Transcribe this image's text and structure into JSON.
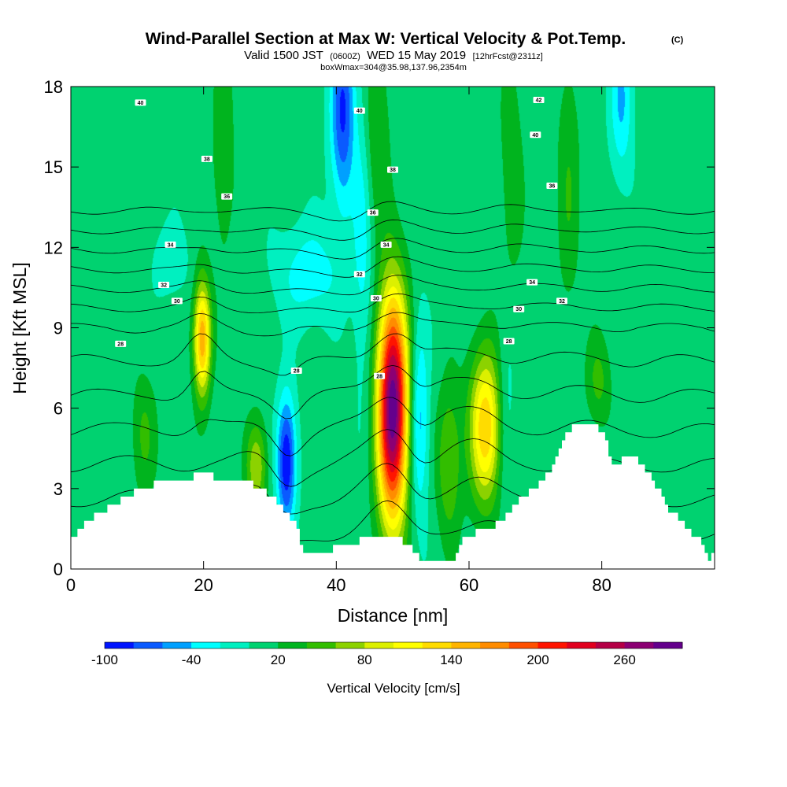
{
  "title": {
    "line1": "Wind-Parallel Section at Max W: Vertical Velocity & Pot.Temp.",
    "copyright": "(C)",
    "line2_a": "Valid 1500 JST",
    "line2_b": "(0600Z)",
    "line2_c": "WED 15 May 2019",
    "line2_d": "[12hrFcst@2311z]",
    "line3": "boxWmax=304@35.98,137.96,2354m"
  },
  "chart_data": {
    "type": "heatmap",
    "xlabel": "Distance [nm]",
    "ylabel": "Height [Kft MSL]",
    "xlim": [
      0,
      97
    ],
    "ylim": [
      0,
      18
    ],
    "x_ticks": [
      0,
      20,
      40,
      60,
      80
    ],
    "y_ticks": [
      0,
      3,
      6,
      9,
      12,
      15,
      18
    ],
    "background_value": 8,
    "updrafts": [
      {
        "x": 48.5,
        "y": 6.0,
        "sx": 1.6,
        "sy": 3.0,
        "w": 290
      },
      {
        "x": 19.8,
        "y": 8.6,
        "sx": 0.9,
        "sy": 1.5,
        "w": 150
      },
      {
        "x": 62.5,
        "y": 5.3,
        "sx": 1.7,
        "sy": 2.0,
        "w": 130
      },
      {
        "x": 28.0,
        "y": 3.8,
        "sx": 1.1,
        "sy": 1.2,
        "w": 70
      },
      {
        "x": 57.0,
        "y": 4.0,
        "sx": 1.3,
        "sy": 2.0,
        "w": 55
      },
      {
        "x": 11.0,
        "y": 5.0,
        "sx": 1.3,
        "sy": 1.6,
        "w": 35
      },
      {
        "x": 79.5,
        "y": 7.0,
        "sx": 1.3,
        "sy": 1.2,
        "w": 38
      },
      {
        "x": 46.0,
        "y": 16.5,
        "sx": 1.4,
        "sy": 2.5,
        "w": 35
      },
      {
        "x": 23.0,
        "y": 15.5,
        "sx": 1.2,
        "sy": 3.0,
        "w": 28
      },
      {
        "x": 66.5,
        "y": 15.0,
        "sx": 1.2,
        "sy": 3.0,
        "w": 28
      },
      {
        "x": 75.0,
        "y": 14.5,
        "sx": 1.2,
        "sy": 3.5,
        "w": 30
      }
    ],
    "downdrafts": [
      {
        "x": 32.5,
        "y": 4.0,
        "sx": 1.0,
        "sy": 1.7,
        "w": -110
      },
      {
        "x": 52.5,
        "y": 5.5,
        "sx": 1.0,
        "sy": 2.5,
        "w": -60
      },
      {
        "x": 41.0,
        "y": 17.0,
        "sx": 1.3,
        "sy": 2.5,
        "w": -90
      },
      {
        "x": 36.0,
        "y": 11.0,
        "sx": 3.5,
        "sy": 1.3,
        "w": -40
      },
      {
        "x": 83.0,
        "y": 17.5,
        "sx": 1.2,
        "sy": 2.0,
        "w": -50
      },
      {
        "x": 65.5,
        "y": 6.0,
        "sx": 1.0,
        "sy": 2.5,
        "w": -25
      },
      {
        "x": 44.0,
        "y": 12.5,
        "sx": 1.0,
        "sy": 4.0,
        "w": -35
      },
      {
        "x": 15.0,
        "y": 11.5,
        "sx": 2.0,
        "sy": 1.0,
        "w": -22
      }
    ],
    "terrain": [
      [
        0,
        1.0
      ],
      [
        2,
        1.6
      ],
      [
        4,
        2.0
      ],
      [
        6,
        2.3
      ],
      [
        8,
        2.6
      ],
      [
        10,
        2.9
      ],
      [
        13,
        3.2
      ],
      [
        16,
        3.3
      ],
      [
        18,
        3.3
      ],
      [
        19,
        3.5
      ],
      [
        21,
        3.5
      ],
      [
        22,
        3.3
      ],
      [
        26,
        3.3
      ],
      [
        28,
        3.1
      ],
      [
        30,
        2.8
      ],
      [
        32,
        2.3
      ],
      [
        34,
        1.6
      ],
      [
        35,
        0.7
      ],
      [
        39,
        0.7
      ],
      [
        42,
        0.9
      ],
      [
        44,
        1.1
      ],
      [
        46,
        1.3
      ],
      [
        49,
        1.3
      ],
      [
        50,
        1.0
      ],
      [
        52,
        0.7
      ],
      [
        53,
        0.3
      ],
      [
        58,
        0.3
      ],
      [
        59,
        1.2
      ],
      [
        62,
        1.4
      ],
      [
        65,
        1.8
      ],
      [
        67,
        2.4
      ],
      [
        69,
        2.8
      ],
      [
        71,
        3.3
      ],
      [
        73,
        4.0
      ],
      [
        75,
        5.1
      ],
      [
        76,
        5.5
      ],
      [
        77,
        5.3
      ],
      [
        78,
        5.5
      ],
      [
        80,
        5.2
      ],
      [
        81,
        4.5
      ],
      [
        82,
        3.8
      ],
      [
        84,
        4.2
      ],
      [
        86,
        4.0
      ],
      [
        88,
        3.2
      ],
      [
        90,
        2.3
      ],
      [
        93,
        1.5
      ],
      [
        95,
        1.0
      ],
      [
        96,
        0.4
      ],
      [
        97,
        0.5
      ]
    ],
    "theta_contours": {
      "levels": [
        20,
        22,
        24,
        26,
        28,
        30,
        32,
        34,
        36,
        38,
        40,
        42,
        44,
        46,
        48
      ],
      "labels": [
        {
          "text": "40",
          "x": 10.5,
          "y": 17.4
        },
        {
          "text": "40",
          "x": 43.5,
          "y": 17.1
        },
        {
          "text": "40",
          "x": 70.0,
          "y": 16.2
        },
        {
          "text": "42",
          "x": 70.5,
          "y": 17.5
        },
        {
          "text": "38",
          "x": 20.5,
          "y": 15.3
        },
        {
          "text": "38",
          "x": 48.5,
          "y": 14.9
        },
        {
          "text": "36",
          "x": 23.5,
          "y": 13.9
        },
        {
          "text": "36",
          "x": 45.5,
          "y": 13.3
        },
        {
          "text": "36",
          "x": 72.5,
          "y": 14.3
        },
        {
          "text": "34",
          "x": 15.0,
          "y": 12.1
        },
        {
          "text": "34",
          "x": 47.5,
          "y": 12.1
        },
        {
          "text": "34",
          "x": 69.5,
          "y": 10.7
        },
        {
          "text": "32",
          "x": 14.0,
          "y": 10.6
        },
        {
          "text": "32",
          "x": 43.5,
          "y": 11.0
        },
        {
          "text": "32",
          "x": 74.0,
          "y": 10.0
        },
        {
          "text": "30",
          "x": 16.0,
          "y": 10.0
        },
        {
          "text": "30",
          "x": 46.0,
          "y": 10.1
        },
        {
          "text": "30",
          "x": 67.5,
          "y": 9.7
        },
        {
          "text": "28",
          "x": 7.5,
          "y": 8.4
        },
        {
          "text": "28",
          "x": 34.0,
          "y": 7.4
        },
        {
          "text": "28",
          "x": 46.5,
          "y": 7.2
        },
        {
          "text": "28",
          "x": 66.0,
          "y": 8.5
        }
      ]
    },
    "colorbar": {
      "label": "Vertical Velocity [cm/s]",
      "min": -100,
      "max": 300,
      "step": 20,
      "tick_labels": [
        "-100",
        "-40",
        "20",
        "80",
        "140",
        "200",
        "260"
      ],
      "colors": [
        "#0014ff",
        "#0a5aff",
        "#00a0ff",
        "#00ffff",
        "#00f0c0",
        "#00d270",
        "#00b41e",
        "#32be00",
        "#8cd200",
        "#dcf000",
        "#ffff00",
        "#ffdc00",
        "#ffb400",
        "#ff8c00",
        "#ff5000",
        "#ff1400",
        "#e1001e",
        "#b40046",
        "#8c0073",
        "#64008c"
      ]
    }
  }
}
